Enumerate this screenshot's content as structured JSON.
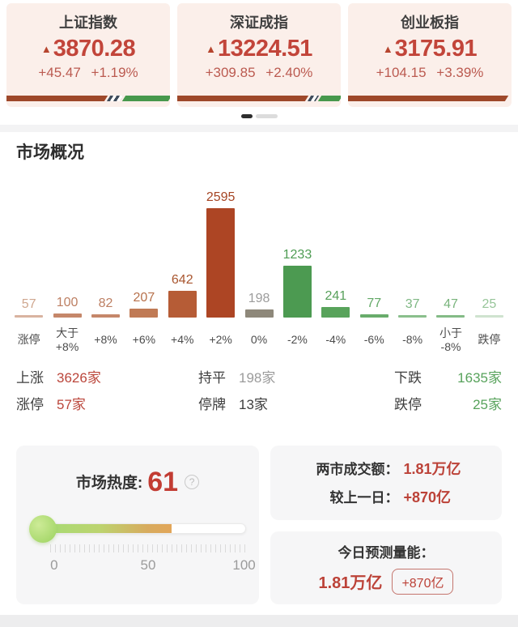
{
  "icons": {
    "up_arrow": "▲",
    "help": "?"
  },
  "indices": [
    {
      "name": "上证指数",
      "price": "3870.28",
      "change": "+45.47",
      "change_pct": "+1.19%",
      "bar": {
        "red": 64,
        "neutral": 8,
        "green": 28
      }
    },
    {
      "name": "深证成指",
      "price": "13224.51",
      "change": "+309.85",
      "change_pct": "+2.40%",
      "bar": {
        "red": 82,
        "neutral": 5,
        "green": 13
      }
    },
    {
      "name": "创业板指",
      "price": "3175.91",
      "change": "+104.15",
      "change_pct": "+3.39%",
      "bar": {
        "red": 100,
        "neutral": 0,
        "green": 0
      }
    }
  ],
  "overview": {
    "title": "市场概况"
  },
  "chart_data": {
    "type": "bar",
    "categories": [
      "涨停",
      "大于\n+8%",
      "+8%",
      "+6%",
      "+4%",
      "+2%",
      "0%",
      "-2%",
      "-4%",
      "-6%",
      "-8%",
      "小于\n-8%",
      "跌停"
    ],
    "values": [
      57,
      100,
      82,
      207,
      642,
      2595,
      198,
      1233,
      241,
      77,
      37,
      47,
      25
    ],
    "bar_colors": [
      "#d9b3a0",
      "#c5876a",
      "#c5876a",
      "#c07a55",
      "#b65c36",
      "#ad4524",
      "#8e887a",
      "#4c9a51",
      "#58a35b",
      "#68ac6b",
      "#8abf8c",
      "#84bb86",
      "#cfe3cf"
    ],
    "num_colors": [
      "#cfa78f",
      "#bd7f62",
      "#bd7f62",
      "#b7714c",
      "#a9562f",
      "#a54423",
      "#9c9c9c",
      "#4e9c53",
      "#57a05a",
      "#63a967",
      "#7fb884",
      "#79b47c",
      "#97c599"
    ],
    "xlabel": "",
    "ylabel": "",
    "ylim": [
      0,
      2595
    ],
    "grid": false,
    "legend": false
  },
  "stats": {
    "rows": [
      [
        {
          "label": "上涨",
          "value": "3626家",
          "value_color": "#bb463b"
        },
        {
          "label": "持平",
          "value": "198家",
          "value_color": "#9b9b9b"
        },
        {
          "label": "下跌",
          "value": "1635家",
          "value_color": "#57a25b"
        }
      ],
      [
        {
          "label": "涨停",
          "value": "57家",
          "value_color": "#bb463b"
        },
        {
          "label": "停牌",
          "value": "13家",
          "value_color": "#3d3d3d"
        },
        {
          "label": "跌停",
          "value": "25家",
          "value_color": "#57a25b"
        }
      ]
    ]
  },
  "heat": {
    "label": "市场热度:",
    "value": 61,
    "percent": 62,
    "tick_labels": [
      "0",
      "50",
      "100"
    ]
  },
  "turnover": {
    "rows": [
      {
        "label": "两市成交额：",
        "value": "1.81万亿"
      },
      {
        "label": "较上一日：",
        "value": "+870亿"
      }
    ]
  },
  "forecast": {
    "title": "今日预测量能：",
    "value": "1.81万亿",
    "badge": "+870亿"
  }
}
